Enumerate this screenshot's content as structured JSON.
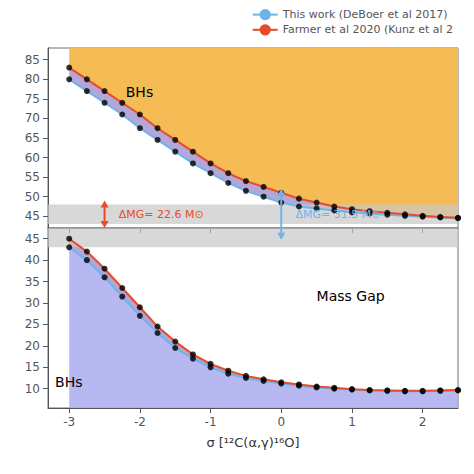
{
  "chart_data": [
    {
      "type": "line",
      "x": [
        -3.0,
        -2.75,
        -2.5,
        -2.25,
        -2.0,
        -1.75,
        -1.5,
        -1.25,
        -1.0,
        -0.75,
        -0.5,
        -0.25,
        0.0,
        0.25,
        0.5,
        0.75,
        1.0,
        1.25,
        1.5,
        1.75,
        2.0,
        2.25,
        2.5
      ],
      "xlim": [
        -3.3,
        2.5
      ],
      "xticks": [
        -3,
        -2,
        -1,
        0,
        1,
        2
      ],
      "ylim": [
        42,
        88
      ],
      "yticks": [
        45,
        50,
        55,
        60,
        65,
        70,
        75,
        80,
        85
      ],
      "tick_labels": "y",
      "grid": false,
      "legend": "upper right",
      "marker": "circle",
      "series": [
        {
          "name": "This work (DeBoer et al 2017)",
          "color": "#6EB4E8",
          "values": [
            80,
            77,
            74,
            71,
            67.5,
            64.5,
            61.5,
            58.5,
            56,
            53.5,
            51.5,
            50,
            48.5,
            47.5,
            47,
            46.5,
            46,
            45.7,
            45.4,
            45.1,
            44.9,
            44.7,
            44.5
          ]
        },
        {
          "name": "Farmer et al 2020 (Kunz et al 2",
          "color": "#E84A2A",
          "values": [
            83,
            80,
            77,
            74,
            71,
            67.5,
            64.5,
            61.5,
            58.5,
            56,
            54,
            52.5,
            51,
            49.5,
            48.5,
            47.5,
            46.8,
            46.3,
            45.9,
            45.5,
            45.1,
            44.8,
            44.6
          ]
        }
      ],
      "fills": {
        "above": "#F5BC55",
        "between": "#9B88C8"
      },
      "bands": [
        {
          "y": [
            43,
            48
          ],
          "color": "#C8C8C8"
        }
      ],
      "annotations": [
        {
          "text": "BHs",
          "x": -2.2,
          "y": 75
        }
      ],
      "arrows": [
        {
          "x": -2.5,
          "y": [
            42,
            49
          ],
          "color": "#E84A2A",
          "label": "ΔMG= 22.6 M⊙",
          "label_x": -2.3,
          "label_y": 45.5
        },
        {
          "x": 0.0,
          "y": [
            39,
            52
          ],
          "color": "#6EB4E8",
          "label": "ΔMG= 31.5 M⊙",
          "label_x": 0.2,
          "label_y": 45.5
        }
      ]
    },
    {
      "type": "line",
      "x": [
        -3.0,
        -2.75,
        -2.5,
        -2.25,
        -2.0,
        -1.75,
        -1.5,
        -1.25,
        -1.0,
        -0.75,
        -0.5,
        -0.25,
        0.0,
        0.25,
        0.5,
        0.75,
        1.0,
        1.25,
        1.5,
        1.75,
        2.0,
        2.25,
        2.5
      ],
      "xlabel": "σ [¹²C(α,γ)¹⁶O]",
      "xlim": [
        -3.3,
        2.5
      ],
      "xticks": [
        -3,
        -2,
        -1,
        0,
        1,
        2
      ],
      "ylim": [
        5.5,
        47.5
      ],
      "yticks": [
        10,
        15,
        20,
        25,
        30,
        35,
        40,
        45
      ],
      "grid": false,
      "marker": "circle",
      "series": [
        {
          "name": "This work (DeBoer et al 2017)",
          "color": "#6EB4E8",
          "values": [
            43,
            40,
            36,
            31.5,
            27,
            23,
            19.5,
            17,
            15,
            13.5,
            12.5,
            11.8,
            11.2,
            10.7,
            10.3,
            10.0,
            9.8,
            9.6,
            9.5,
            9.4,
            9.4,
            9.5,
            9.6
          ]
        },
        {
          "name": "Farmer et al 2020 (Kunz et al 2",
          "color": "#E84A2A",
          "values": [
            45,
            42,
            38,
            33.5,
            29,
            24.5,
            21,
            18,
            15.8,
            14.2,
            13.0,
            12.2,
            11.5,
            11.0,
            10.5,
            10.2,
            9.9,
            9.7,
            9.6,
            9.5,
            9.5,
            9.6,
            9.7
          ]
        }
      ],
      "fills": {
        "below": "#AAAAEE",
        "between": "#9B88C8"
      },
      "bands": [
        {
          "y": [
            43,
            47.5
          ],
          "color": "#C8C8C8"
        }
      ],
      "annotations": [
        {
          "text": "Mass Gap",
          "x": 0.5,
          "y": 30
        },
        {
          "text": "BHs",
          "x": -3.2,
          "y": 10
        }
      ]
    }
  ]
}
